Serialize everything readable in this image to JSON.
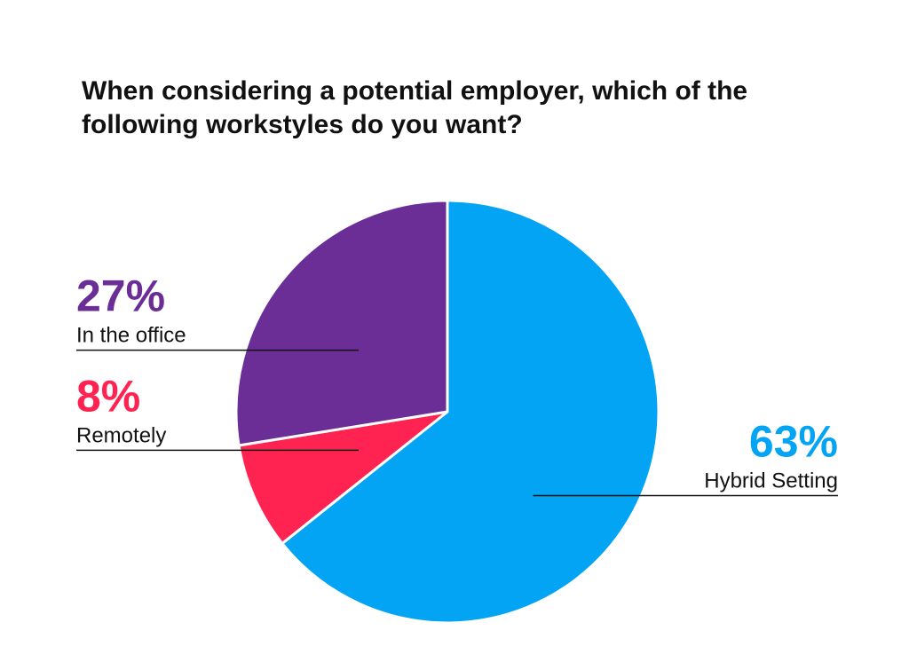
{
  "chart_data": {
    "type": "pie",
    "title": "When considering a potential employer, which of the following workstyles do you want?",
    "unit": "%",
    "slices": [
      {
        "label": "Hybrid Setting",
        "value": 63,
        "value_label": "63%",
        "color": "#03A4F4"
      },
      {
        "label": "Remotely",
        "value": 8,
        "value_label": "8%",
        "color": "#FF2352"
      },
      {
        "label": "In the office",
        "value": 27,
        "value_label": "27%",
        "color": "#6B2E97"
      }
    ],
    "start_angle_deg": 0,
    "direction": "clockwise",
    "legend_placement": "callout labels beside the slices",
    "label_sides": [
      "right",
      "left",
      "left"
    ],
    "leader_line_color": "#111111"
  }
}
